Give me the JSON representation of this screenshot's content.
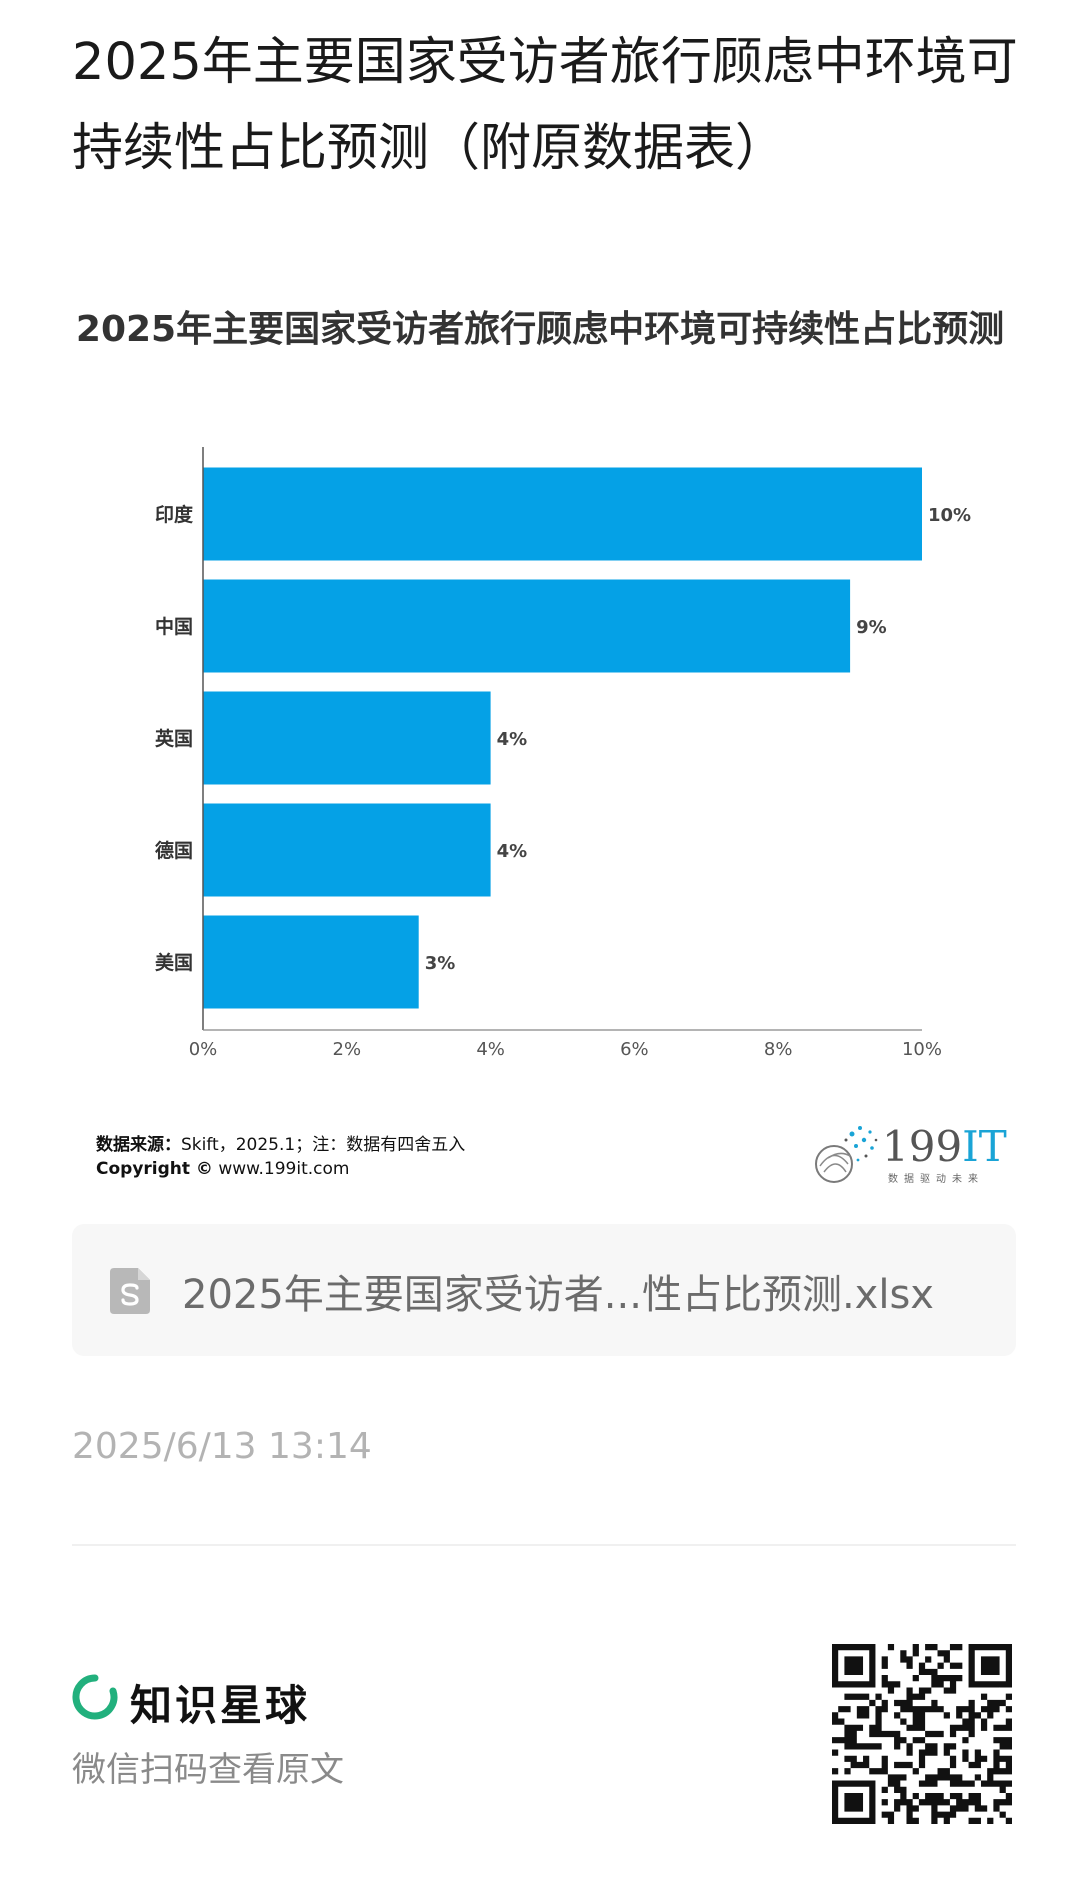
{
  "page": {
    "title": "2025年主要国家受访者旅行顾虑中环境可持续性占比预测（附原数据表）"
  },
  "chart_data": {
    "type": "bar",
    "orientation": "horizontal",
    "title": "2025年主要国家受访者旅行顾虑中环境可持续性占比预测",
    "categories": [
      "印度",
      "中国",
      "英国",
      "德国",
      "美国"
    ],
    "values": [
      10,
      9,
      4,
      4,
      3
    ],
    "value_labels": [
      "10%",
      "9%",
      "4%",
      "4%",
      "3%"
    ],
    "xlim": [
      0,
      10
    ],
    "x_ticks": [
      "0%",
      "2%",
      "4%",
      "6%",
      "8%",
      "10%"
    ],
    "xlabel": "",
    "ylabel": "",
    "bar_color": "#05a1e6",
    "grid": false
  },
  "footer": {
    "source_label": "数据来源：",
    "source_text": "Skift，2025.1；注：数据有四舍五入",
    "copyright_label": "Copyright ©",
    "copyright_url": "www.199it.com"
  },
  "brand": {
    "name_main": "199",
    "name_accent": "IT",
    "tagline": "数据驱动未来",
    "accent_color": "#1aa4d6"
  },
  "attachment": {
    "file_name": "2025年主要国家受访者...性占比预测.xlsx",
    "icon": "spreadsheet-file-icon"
  },
  "timestamp": "2025/6/13 13:14",
  "promo": {
    "name": "知识星球",
    "hint": "微信扫码查看原文",
    "logo_color": "#22b07d",
    "icon": "qr-code"
  }
}
